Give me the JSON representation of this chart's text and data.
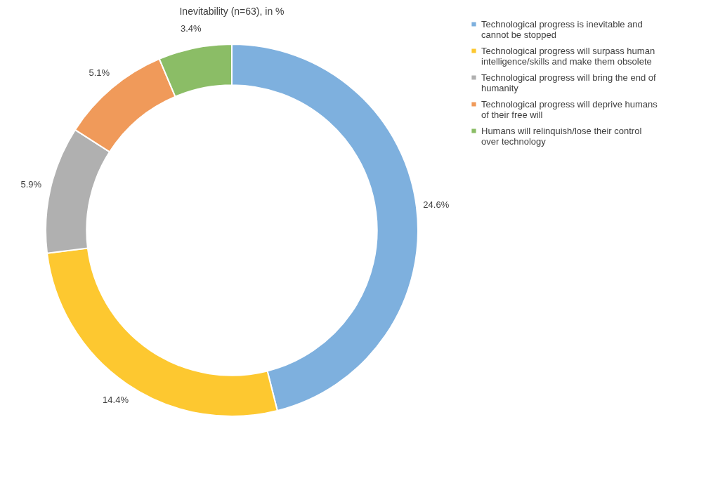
{
  "chart_data": {
    "type": "donut",
    "title": "Inevitability (n=63), in %",
    "categories": [
      "Technological progress is inevitable and cannot be stopped",
      "Technological progress will surpass human intelligence/skills and make them obsolete",
      "Technological progress will bring the end of humanity",
      "Technological progress will deprive humans of their free will",
      "Humans will relinquish/lose their control over technology"
    ],
    "values": [
      24.6,
      14.4,
      5.9,
      5.1,
      3.4
    ],
    "colors": [
      "#7eb0de",
      "#fdc830",
      "#b0b0b0",
      "#f09a5a",
      "#8bbd66"
    ],
    "value_labels": [
      "24.6%",
      "14.4%",
      "5.9%",
      "5.1%",
      "3.4%"
    ],
    "legend": "right"
  }
}
